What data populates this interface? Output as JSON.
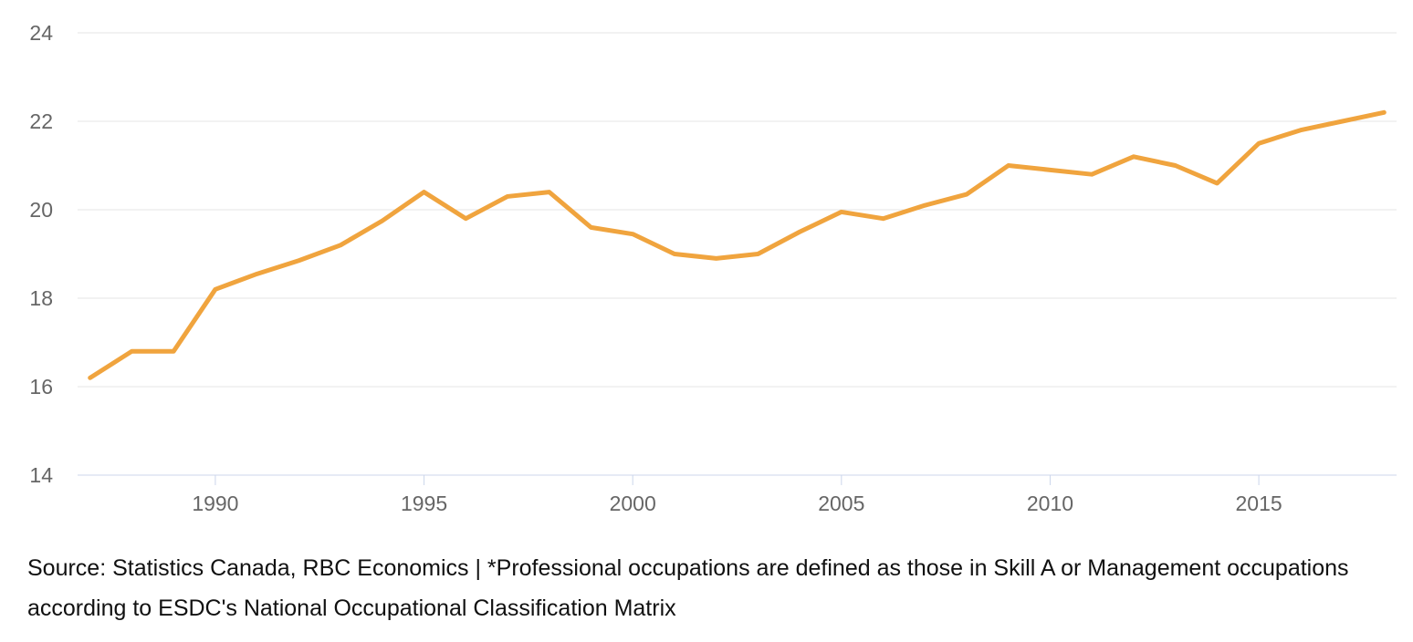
{
  "chart_data": {
    "type": "line",
    "title": "",
    "xlabel": "",
    "ylabel": "",
    "x": [
      1987,
      1988,
      1989,
      1990,
      1991,
      1992,
      1993,
      1994,
      1995,
      1996,
      1997,
      1998,
      1999,
      2000,
      2001,
      2002,
      2003,
      2004,
      2005,
      2006,
      2007,
      2008,
      2009,
      2010,
      2011,
      2012,
      2013,
      2014,
      2015,
      2016,
      2017,
      2018
    ],
    "values": [
      16.2,
      16.8,
      16.8,
      18.2,
      18.55,
      18.85,
      19.2,
      19.75,
      20.4,
      19.8,
      20.3,
      20.4,
      19.6,
      19.45,
      19.0,
      18.9,
      19.0,
      19.5,
      19.95,
      19.8,
      20.1,
      20.35,
      21.0,
      20.9,
      20.8,
      21.2,
      21.0,
      20.6,
      21.5,
      21.8,
      22.0,
      22.2
    ],
    "xlim": [
      1986.7,
      2018.3
    ],
    "ylim": [
      14,
      24
    ],
    "xticks": [
      1990,
      1995,
      2000,
      2005,
      2010,
      2015
    ],
    "yticks": [
      14,
      16,
      18,
      20,
      22,
      24
    ],
    "grid": "horizontal",
    "legend": "none",
    "colors": {
      "line": "#F0A43E",
      "gridline": "#E6E6E6",
      "axis_line": "#CCD6EB",
      "tick_label": "#666666"
    }
  },
  "footer": {
    "source_note": "Source: Statistics Canada, RBC Economics | *Professional occupations are defined as those in Skill A or Management occupations according to ESDC's National Occupational Classification Matrix"
  }
}
